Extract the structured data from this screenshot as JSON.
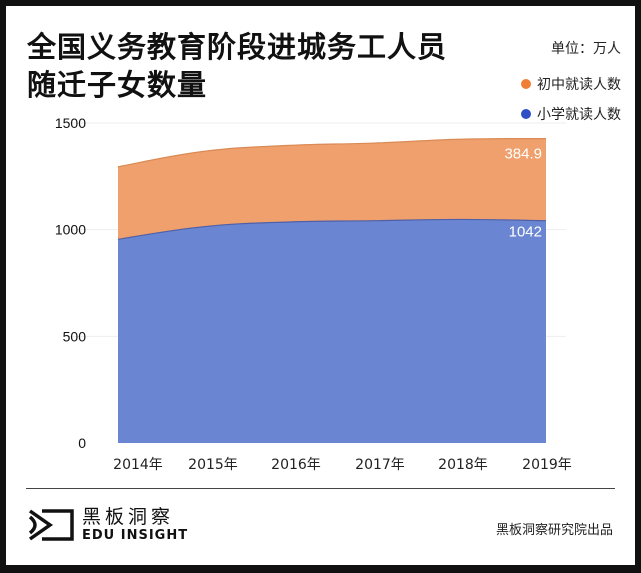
{
  "header": {
    "title_line1": "全国义务教育阶段进城务工人员",
    "title_line2": "随迁子女数量",
    "unit": "单位：万人"
  },
  "legend": [
    {
      "label": "初中就读人数",
      "color": "#F0A06C",
      "dot": "#F07F35"
    },
    {
      "label": "小学就读人数",
      "color": "#6A86D2",
      "dot": "#2F4FC6"
    }
  ],
  "footer": {
    "logo_cn": "黑板洞察",
    "logo_en": "EDU INSIGHT",
    "credit": "黑板洞察研究院出品"
  },
  "chart_data": {
    "type": "area",
    "stacked": true,
    "title": "全国义务教育阶段进城务工人员随迁子女数量",
    "unit": "万人",
    "categories": [
      "2014年",
      "2015年",
      "2016年",
      "2017年",
      "2018年",
      "2019年"
    ],
    "series": [
      {
        "name": "小学就读人数",
        "color": "#6A86D2",
        "values": [
          955,
          1014,
          1036,
          1042,
          1048,
          1042
        ]
      },
      {
        "name": "初中就读人数",
        "color": "#F0A06C",
        "values": [
          340,
          353,
          359,
          364,
          376,
          384.9
        ]
      }
    ],
    "annotations": [
      {
        "series": "初中就读人数",
        "x": "2019年",
        "text": "384.9"
      },
      {
        "series": "小学就读人数",
        "x": "2019年",
        "text": "1042"
      }
    ],
    "yticks": [
      "0",
      "500",
      "1000",
      "1500"
    ],
    "ylim": [
      0,
      1500
    ],
    "xlabel": "",
    "ylabel": "",
    "grid": true,
    "legend_position": "top-right"
  }
}
